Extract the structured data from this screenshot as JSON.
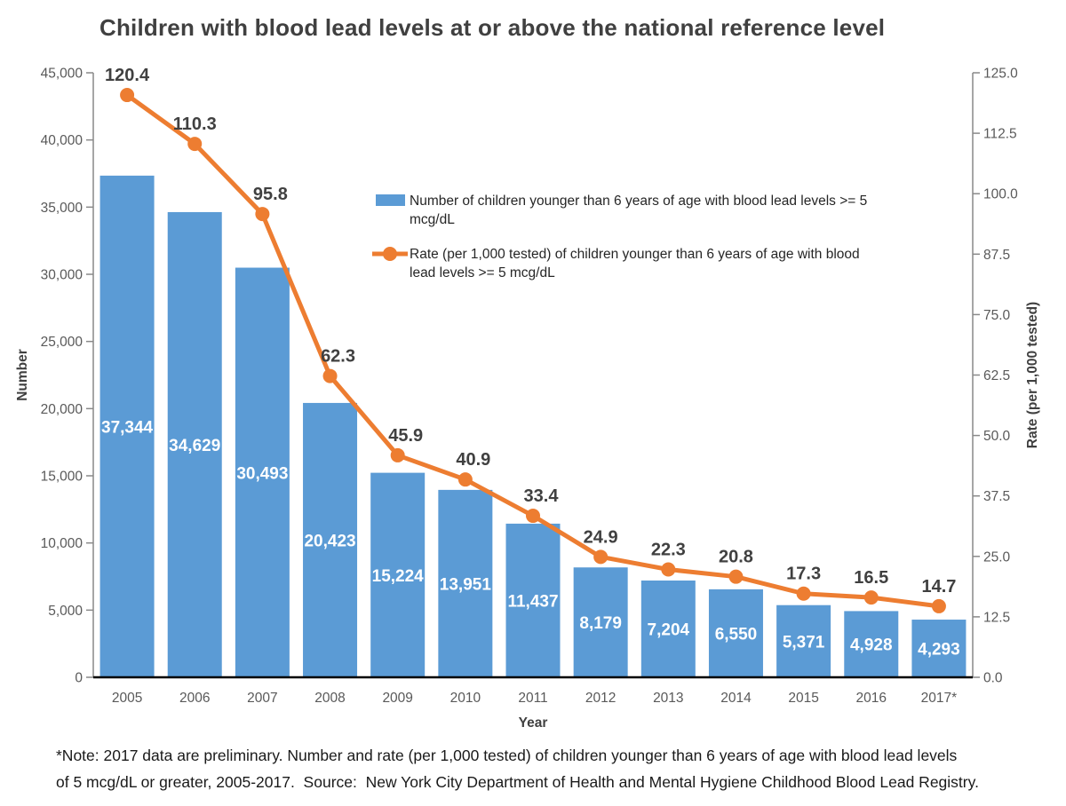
{
  "chart_data": {
    "type": "bar",
    "combo": "bar+line",
    "title": "Children with blood lead levels at or above the national reference level",
    "xlabel": "Year",
    "ylabel_left": "Number",
    "ylabel_right": "Rate (per 1,000 tested)",
    "categories": [
      "2005",
      "2006",
      "2007",
      "2008",
      "2009",
      "2010",
      "2011",
      "2012",
      "2013",
      "2014",
      "2015",
      "2016",
      "2017*"
    ],
    "series": [
      {
        "name": "Number of children younger than 6 years of age with blood lead levels >= 5 mcg/dL",
        "type": "bar",
        "axis": "left",
        "values": [
          37344,
          34629,
          30493,
          20423,
          15224,
          13951,
          11437,
          8179,
          7204,
          6550,
          5371,
          4928,
          4293
        ]
      },
      {
        "name": "Rate (per 1,000 tested) of children younger than 6 years of age with blood lead levels >= 5 mcg/dL",
        "type": "line",
        "axis": "right",
        "values": [
          120.4,
          110.3,
          95.8,
          62.3,
          45.9,
          40.9,
          33.4,
          24.9,
          22.3,
          20.8,
          17.3,
          16.5,
          14.7
        ]
      }
    ],
    "ylim_left": [
      0,
      45000
    ],
    "ytick_step_left": 5000,
    "ylim_right": [
      0,
      125
    ],
    "ytick_step_right": 12.5,
    "grid": false,
    "legend_position": "inside-upper-right",
    "legend": {
      "entries": [
        {
          "swatch": "bar",
          "lines": [
            "Number of children younger than 6 years of age with blood lead levels >= 5",
            "mcg/dL"
          ]
        },
        {
          "swatch": "line-marker",
          "lines": [
            "Rate (per 1,000 tested) of children younger than 6 years of age with blood",
            "lead levels >= 5 mcg/dL"
          ]
        }
      ]
    },
    "style": {
      "bar_color": "#5B9BD5",
      "line_color": "#ED7D31",
      "bar_label_color": "#FFFFFF",
      "rate_label_color": "#404040",
      "axis_tick_text_color": "#595959",
      "axis_title_color": "#404040",
      "side_axis_line_color": "#898989",
      "bottom_axis_line_color": "#000000",
      "legend_text_color": "#262626",
      "title_color": "#404040"
    }
  },
  "footnote_lines": [
    "*Note: 2017 data are preliminary. Number and rate (per 1,000 tested) of children younger than 6 years of age with blood lead levels",
    "of 5 mcg/dL or greater, 2005-2017.  Source:  New York City Department of Health and Mental Hygiene Childhood Blood Lead Registry."
  ]
}
